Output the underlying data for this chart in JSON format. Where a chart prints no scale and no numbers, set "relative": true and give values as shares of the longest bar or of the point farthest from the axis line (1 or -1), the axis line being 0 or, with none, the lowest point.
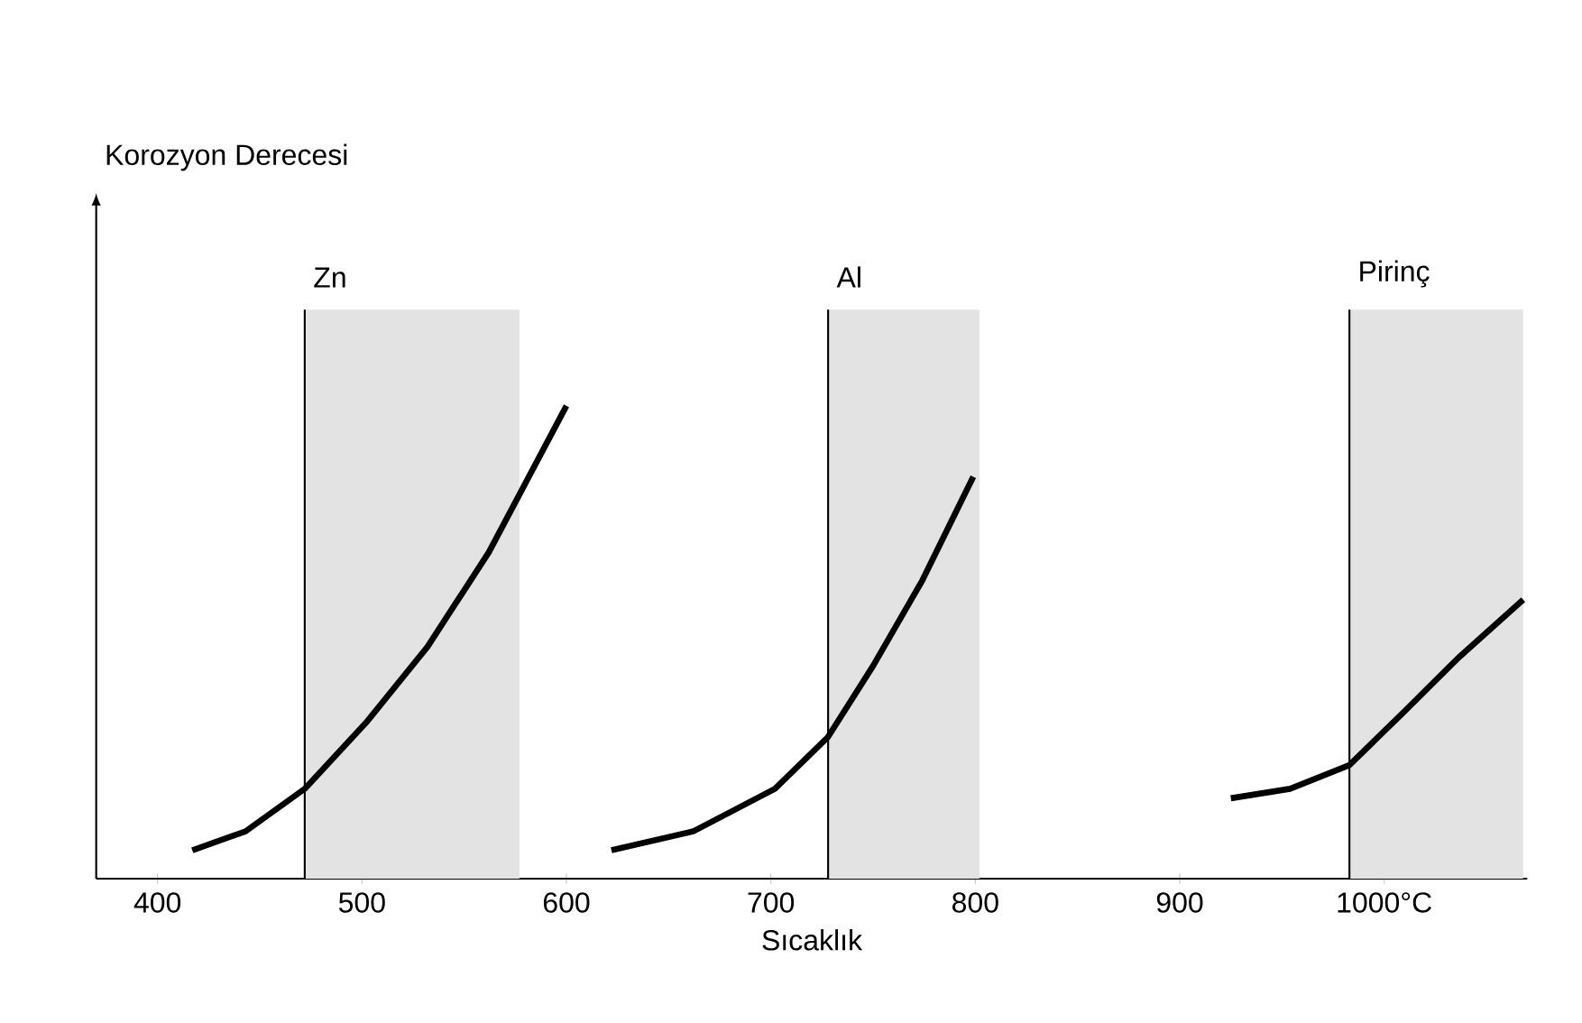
{
  "chart_data": {
    "type": "line",
    "relative": true,
    "annotations": [
      "Korozyon Derecesi"
    ],
    "xlabel": "Sıcaklık",
    "xlim": [
      370,
      1070
    ],
    "xticks": [
      400,
      500,
      600,
      700,
      800,
      900,
      {
        "value": 1000,
        "label": "1000°C"
      }
    ],
    "grid": false,
    "marker": "none",
    "line_style": "solid",
    "series": [
      {
        "color": "#000000",
        "x": [
          417,
          443,
          472,
          502,
          532,
          562,
          600
        ],
        "values": [
          0.06,
          0.1,
          0.19,
          0.33,
          0.49,
          0.69,
          1.0
        ]
      },
      {
        "color": "#000000",
        "x": [
          622,
          662,
          702,
          728,
          750,
          774,
          799
        ],
        "values": [
          0.06,
          0.1,
          0.19,
          0.3,
          0.45,
          0.63,
          0.85
        ]
      },
      {
        "color": "#000000",
        "x": [
          925,
          954,
          983,
          1009,
          1037,
          1068
        ],
        "values": [
          0.17,
          0.19,
          0.24,
          0.35,
          0.47,
          0.59
        ]
      }
    ],
    "ref_lines": [
      {
        "axis": "x",
        "value": 472,
        "label": "Zn"
      },
      {
        "axis": "x",
        "value": 728,
        "label": "Al"
      },
      {
        "axis": "x",
        "value": 983,
        "label": "Pirinç"
      }
    ],
    "bands": [
      {
        "axis": "x",
        "from": 472,
        "to": 577,
        "color": "#e3e3e3"
      },
      {
        "axis": "x",
        "from": 728,
        "to": 802,
        "color": "#e3e3e3"
      },
      {
        "axis": "x",
        "from": 983,
        "to": 1068,
        "color": "#e3e3e3"
      }
    ]
  }
}
